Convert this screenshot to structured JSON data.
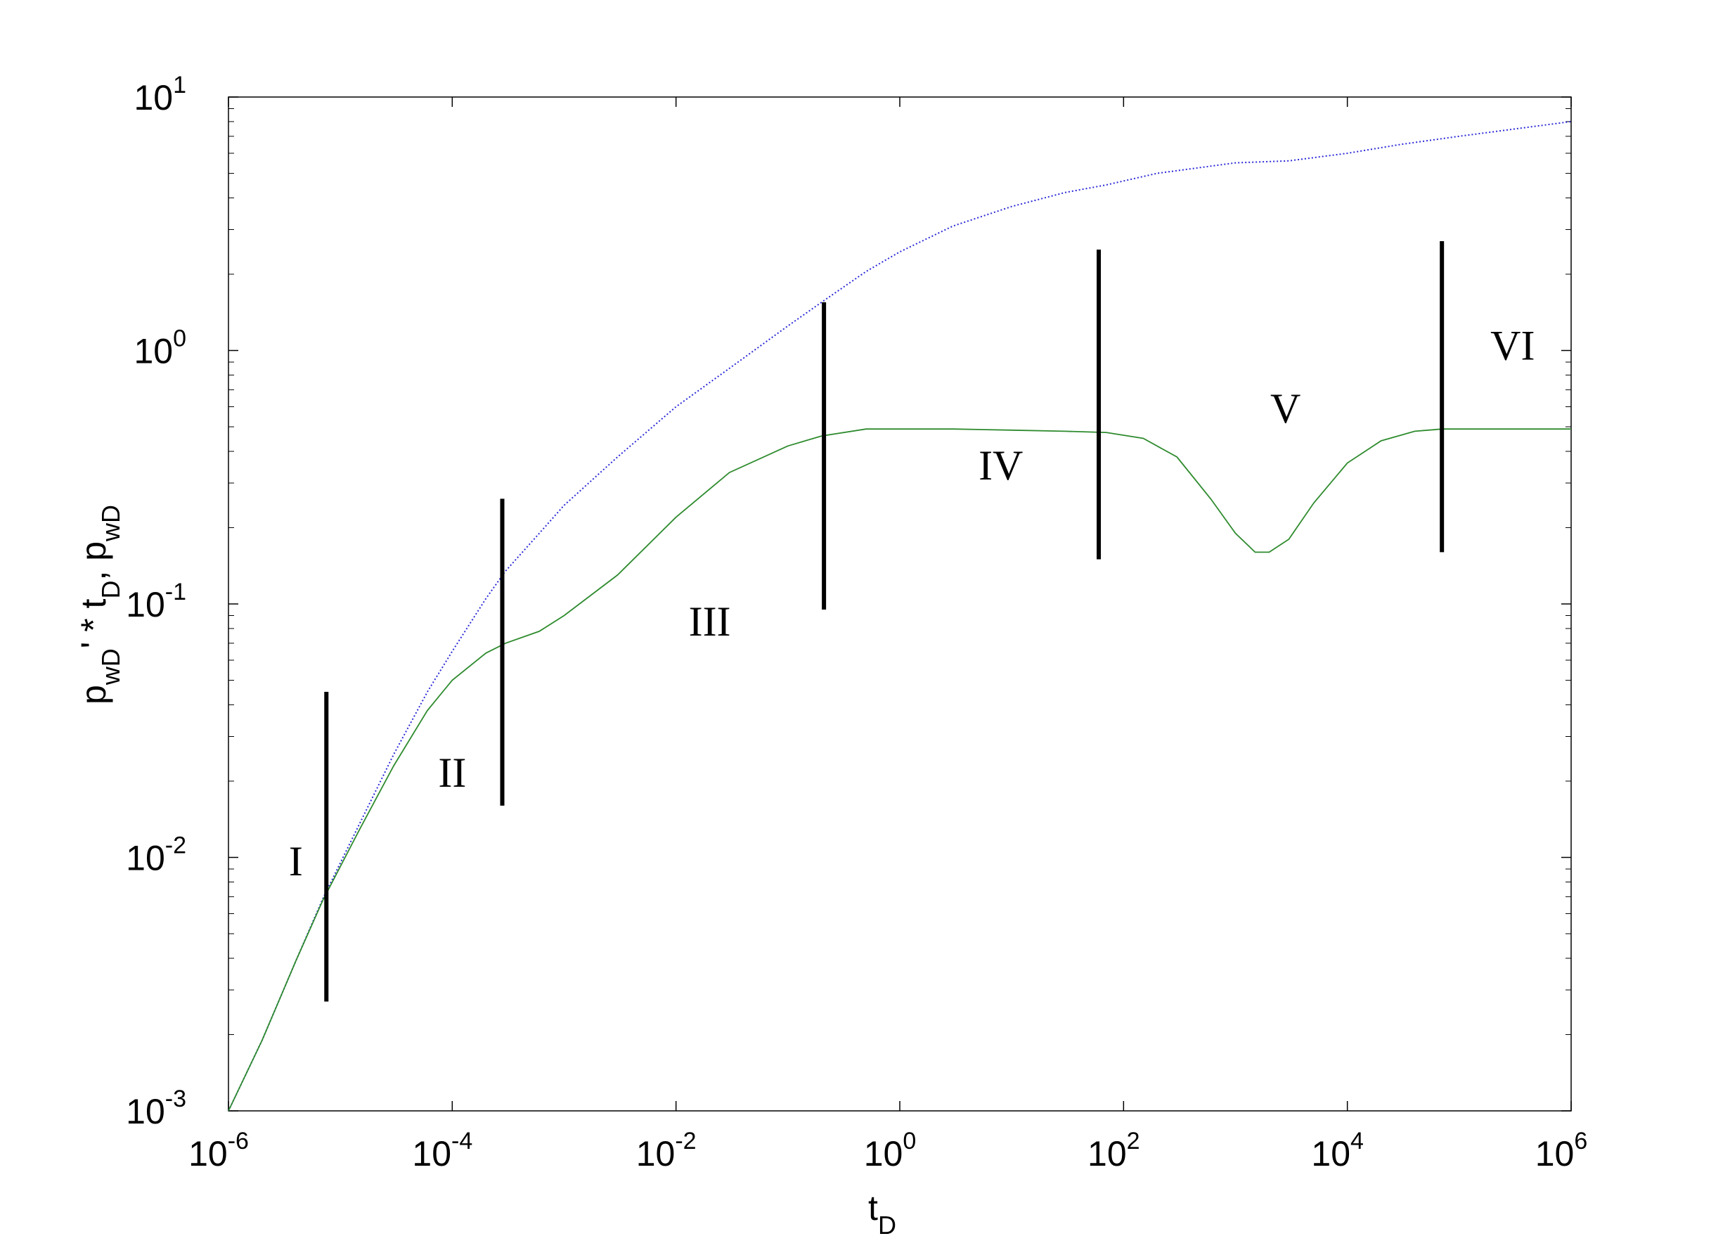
{
  "chart_data": {
    "type": "line",
    "xscale": "log",
    "yscale": "log",
    "xlim": [
      1e-06,
      1000000.0
    ],
    "ylim": [
      0.001,
      10
    ],
    "grid": false,
    "xlabel": {
      "base": "t",
      "sub": "D"
    },
    "ylabel": {
      "part1": "p",
      "sub1": "wD",
      "part2": "' * t",
      "sub2": "D",
      "part3": ",  p",
      "sub3": "wD"
    },
    "x_ticks": [
      {
        "value": 1e-06,
        "base": "10",
        "exp": "-6"
      },
      {
        "value": 0.0001,
        "base": "10",
        "exp": "-4"
      },
      {
        "value": 0.01,
        "base": "10",
        "exp": "-2"
      },
      {
        "value": 1,
        "base": "10",
        "exp": "0"
      },
      {
        "value": 100,
        "base": "10",
        "exp": "2"
      },
      {
        "value": 10000,
        "base": "10",
        "exp": "4"
      },
      {
        "value": 1000000,
        "base": "10",
        "exp": "6"
      }
    ],
    "y_ticks": [
      {
        "value": 0.001,
        "base": "10",
        "exp": "-3"
      },
      {
        "value": 0.01,
        "base": "10",
        "exp": "-2"
      },
      {
        "value": 0.1,
        "base": "10",
        "exp": "-1"
      },
      {
        "value": 1,
        "base": "10",
        "exp": "0"
      },
      {
        "value": 10,
        "base": "10",
        "exp": "1"
      }
    ],
    "series": [
      {
        "color": "#2a2ad8",
        "style": "dotted",
        "x": [
          1e-06,
          2e-06,
          4e-06,
          7e-06,
          1.5e-05,
          3e-05,
          6e-05,
          0.0001,
          0.0002,
          0.0003,
          0.0006,
          0.001,
          0.003,
          0.01,
          0.03,
          0.1,
          0.2,
          0.5,
          1,
          3,
          10,
          30,
          70,
          200,
          1000,
          3000,
          10000,
          30000,
          100000,
          1000000
        ],
        "y": [
          0.001,
          0.0019,
          0.0039,
          0.0069,
          0.0137,
          0.0255,
          0.045,
          0.065,
          0.105,
          0.135,
          0.19,
          0.245,
          0.38,
          0.6,
          0.85,
          1.25,
          1.55,
          2.05,
          2.45,
          3.1,
          3.7,
          4.2,
          4.5,
          5.0,
          5.5,
          5.6,
          6.0,
          6.5,
          7.0,
          8.0
        ]
      },
      {
        "color": "#2e8b2e",
        "style": "solid",
        "x": [
          1e-06,
          2e-06,
          4e-06,
          7e-06,
          1.5e-05,
          3e-05,
          6e-05,
          0.0001,
          0.0002,
          0.0003,
          0.0006,
          0.001,
          0.003,
          0.01,
          0.03,
          0.1,
          0.2,
          0.5,
          1,
          3,
          10,
          30,
          70,
          150,
          300,
          600,
          1000,
          1500,
          2000,
          3000,
          5000,
          10000,
          20000,
          40000,
          70000,
          200000,
          1000000
        ],
        "y": [
          0.001,
          0.0019,
          0.0039,
          0.0068,
          0.013,
          0.023,
          0.038,
          0.05,
          0.064,
          0.07,
          0.078,
          0.09,
          0.13,
          0.22,
          0.33,
          0.42,
          0.46,
          0.49,
          0.49,
          0.49,
          0.485,
          0.48,
          0.475,
          0.45,
          0.38,
          0.26,
          0.19,
          0.16,
          0.16,
          0.18,
          0.25,
          0.36,
          0.44,
          0.48,
          0.49,
          0.49,
          0.49
        ]
      }
    ],
    "boundaries": [
      {
        "x": 7.5e-06,
        "y_low": 0.0027,
        "y_high": 0.045
      },
      {
        "x": 0.00028,
        "y_low": 0.016,
        "y_high": 0.26
      },
      {
        "x": 0.21,
        "y_low": 0.095,
        "y_high": 1.55
      },
      {
        "x": 60,
        "y_low": 0.15,
        "y_high": 2.5
      },
      {
        "x": 70000,
        "y_low": 0.16,
        "y_high": 2.7
      }
    ],
    "region_labels": [
      {
        "text": "I",
        "x": 4e-06,
        "y": 0.0085
      },
      {
        "text": "II",
        "x": 0.0001,
        "y": 0.019
      },
      {
        "text": "III",
        "x": 0.02,
        "y": 0.075
      },
      {
        "text": "IV",
        "x": 8,
        "y": 0.31
      },
      {
        "text": "V",
        "x": 2800,
        "y": 0.52
      },
      {
        "text": "VI",
        "x": 300000,
        "y": 0.92
      }
    ]
  }
}
